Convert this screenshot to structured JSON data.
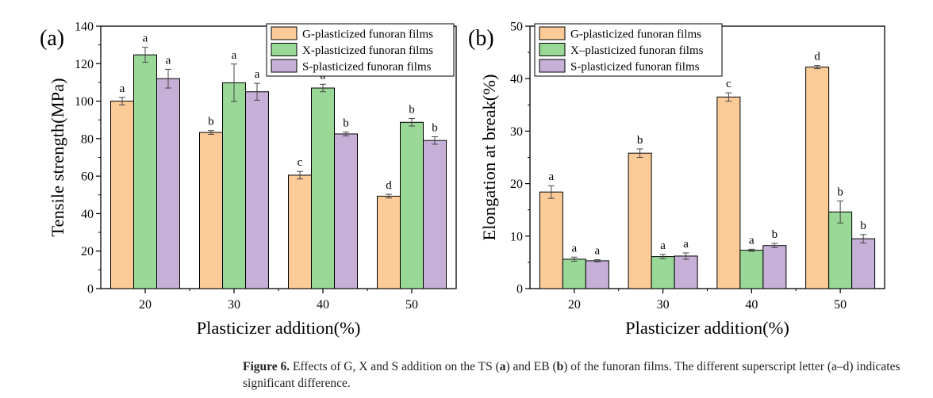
{
  "chart_data": [
    {
      "type": "bar",
      "panel_label": "(a)",
      "categories": [
        "20",
        "30",
        "40",
        "50"
      ],
      "xlabel": "Plasticizer addition(%)",
      "ylabel": "Tensile strength(MPa)",
      "ylim": [
        0,
        140
      ],
      "yticks": [
        0,
        20,
        40,
        60,
        80,
        100,
        120,
        140
      ],
      "legend_position": "top-right",
      "series": [
        {
          "name": "G-plasticized funoran films",
          "color": "#FDCB98",
          "values": [
            100,
            83.3,
            60.5,
            49.3
          ],
          "errors": [
            2.0,
            1.0,
            2.0,
            1.0
          ],
          "letters": [
            "a",
            "b",
            "c",
            "d"
          ]
        },
        {
          "name": "X-plasticized funoran films",
          "color": "#99D897",
          "values": [
            124.7,
            109.8,
            107,
            88.7
          ],
          "errors": [
            4.0,
            10.0,
            2.0,
            2.0
          ],
          "letters": [
            "a",
            "a",
            "a",
            "b"
          ]
        },
        {
          "name": "S-plasticized funoran films",
          "color": "#C6B0D8",
          "values": [
            112,
            105,
            82.5,
            79
          ],
          "errors": [
            5.0,
            4.5,
            1.0,
            2.0
          ],
          "letters": [
            "a",
            "a",
            "b",
            "b"
          ]
        }
      ]
    },
    {
      "type": "bar",
      "panel_label": "(b)",
      "categories": [
        "20",
        "30",
        "40",
        "50"
      ],
      "xlabel": "Plasticizer addition(%)",
      "ylabel": "Elongation at break(%)",
      "ylim": [
        0,
        50
      ],
      "yticks": [
        0,
        10,
        20,
        30,
        40,
        50
      ],
      "legend_position": "top-left",
      "series": [
        {
          "name": "G-plasticized funoran films",
          "color": "#FDCB98",
          "values": [
            18.4,
            25.8,
            36.5,
            42.2
          ],
          "errors": [
            1.2,
            0.8,
            0.8,
            0.3
          ],
          "letters": [
            "a",
            "b",
            "c",
            "d"
          ]
        },
        {
          "name": "X–plasticized funoran films",
          "color": "#99D897",
          "values": [
            5.6,
            6.1,
            7.3,
            14.6
          ],
          "errors": [
            0.4,
            0.4,
            0.2,
            2.1
          ],
          "letters": [
            "a",
            "a",
            "a",
            "b"
          ]
        },
        {
          "name": "S-plasticized funoran films",
          "color": "#C6B0D8",
          "values": [
            5.3,
            6.2,
            8.2,
            9.5
          ],
          "errors": [
            0.2,
            0.6,
            0.4,
            0.8
          ],
          "letters": [
            "a",
            "a",
            "b",
            "b"
          ]
        }
      ]
    }
  ],
  "caption": {
    "label": "Figure 6.",
    "text_parts": [
      "Effects of G, X and S addition on the TS (",
      "a",
      ") and EB (",
      "b",
      ") of the funoran films. The different superscript letter (a–d) indicates significant difference."
    ]
  }
}
